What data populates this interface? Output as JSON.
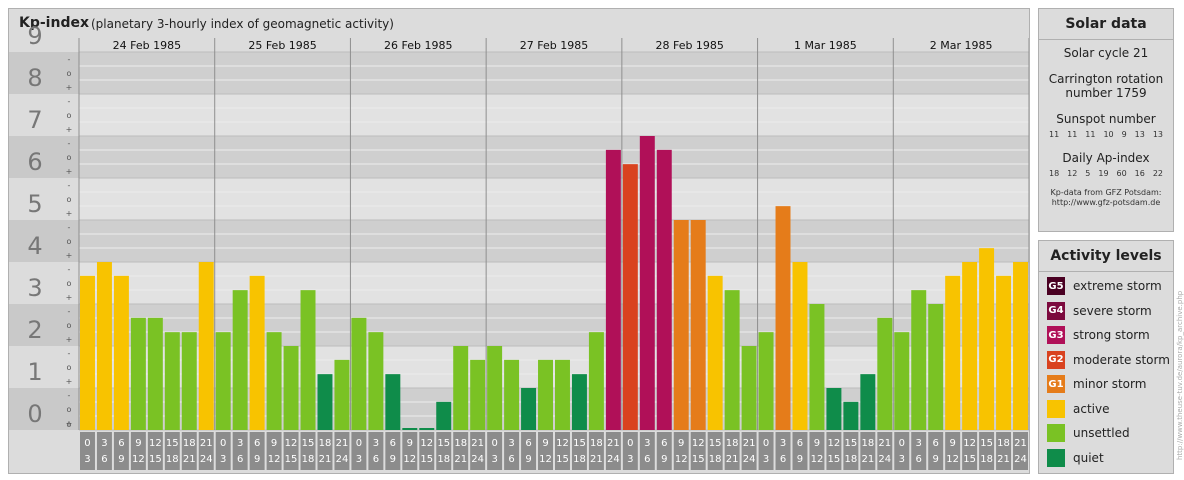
{
  "title": {
    "main": "Kp-index",
    "sub": "(planetary 3-hourly index of geomagnetic activity)"
  },
  "chart_data": {
    "type": "bar",
    "title": "Kp-index",
    "subtitle": "(planetary 3-hourly index of geomagnetic activity)",
    "ylim": [
      0,
      9
    ],
    "y_ticks": [
      "0",
      "1",
      "2",
      "3",
      "4",
      "5",
      "6",
      "7",
      "8",
      "9"
    ],
    "sub_ticks": [
      "+",
      "o",
      "-"
    ],
    "days": [
      "24 Feb 1985",
      "25 Feb 1985",
      "26 Feb 1985",
      "27 Feb 1985",
      "28 Feb 1985",
      "1 Mar 1985",
      "2 Mar 1985"
    ],
    "interval_labels": [
      [
        "0",
        "3"
      ],
      [
        "3",
        "6"
      ],
      [
        "6",
        "9"
      ],
      [
        "9",
        "12"
      ],
      [
        "12",
        "15"
      ],
      [
        "15",
        "18"
      ],
      [
        "18",
        "21"
      ],
      [
        "21",
        "24"
      ]
    ],
    "values": [
      [
        3.67,
        4.0,
        3.67,
        2.67,
        2.67,
        2.33,
        2.33,
        4.0
      ],
      [
        2.33,
        3.33,
        3.67,
        2.33,
        2.0,
        3.33,
        1.33,
        1.67
      ],
      [
        2.67,
        2.33,
        1.33,
        0.0,
        0.0,
        0.67,
        2.0,
        1.67
      ],
      [
        2.0,
        1.67,
        1.0,
        1.67,
        1.67,
        1.33,
        2.33,
        6.67
      ],
      [
        6.33,
        7.0,
        6.67,
        5.0,
        5.0,
        3.67,
        3.33,
        2.0
      ],
      [
        2.33,
        5.33,
        4.0,
        3.0,
        1.0,
        0.67,
        1.33,
        2.67
      ],
      [
        2.33,
        3.33,
        3.0,
        3.67,
        4.0,
        4.33,
        3.67,
        4.0
      ]
    ],
    "level_colors": {
      "quiet": "#0f8c4a",
      "unsettled": "#7ac224",
      "active": "#f8c300",
      "G1": "#e57c1a",
      "G2": "#d9421f",
      "G3": "#b01058",
      "G4": "#7c0a3e",
      "G5": "#4a0022"
    },
    "grid": true
  },
  "solar": {
    "title": "Solar data",
    "cycle": "Solar cycle 21",
    "carrington_1": "Carrington rotation",
    "carrington_2": "number 1759",
    "sunspot_label": "Sunspot number",
    "sunspots": [
      "11",
      "11",
      "11",
      "10",
      "9",
      "13",
      "13"
    ],
    "ap_label": "Daily Ap-index",
    "ap": [
      "18",
      "12",
      "5",
      "19",
      "60",
      "16",
      "22"
    ],
    "credit_1": "Kp-data from GFZ Potsdam:",
    "credit_2": "http://www.gfz-potsdam.de"
  },
  "activity": {
    "title": "Activity levels",
    "levels": [
      {
        "code": "G5",
        "label": "extreme storm",
        "color": "#4a0022"
      },
      {
        "code": "G4",
        "label": "severe storm",
        "color": "#7c0a3e"
      },
      {
        "code": "G3",
        "label": "strong storm",
        "color": "#b01058"
      },
      {
        "code": "G2",
        "label": "moderate storm",
        "color": "#d9421f"
      },
      {
        "code": "G1",
        "label": "minor storm",
        "color": "#e57c1a"
      },
      {
        "code": "",
        "label": "active",
        "color": "#f8c300"
      },
      {
        "code": "",
        "label": "unsettled",
        "color": "#7ac224"
      },
      {
        "code": "",
        "label": "quiet",
        "color": "#0f8c4a"
      }
    ]
  },
  "watermark": "http://www.theuse-tuv.de/aurora/kp_archive.php"
}
